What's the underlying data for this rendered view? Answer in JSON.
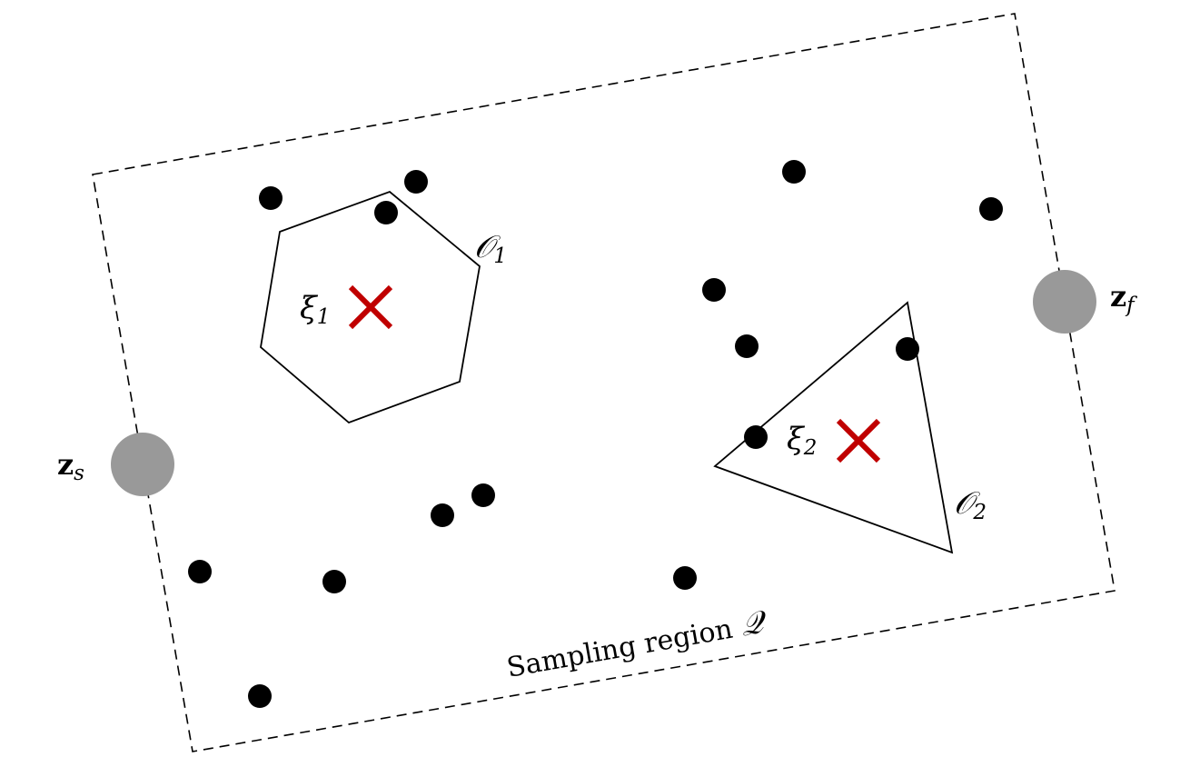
{
  "region": {
    "label": "Sampling region",
    "symbol": "𝒬"
  },
  "obstacles": [
    {
      "symbol": "𝒪",
      "index": "1",
      "center_symbol": "ξ",
      "center_index": "1"
    },
    {
      "symbol": "𝒪",
      "index": "2",
      "center_symbol": "ξ",
      "center_index": "2"
    }
  ],
  "start": {
    "symbol": "z",
    "sub": "s"
  },
  "goal": {
    "symbol": "z",
    "sub": "f"
  },
  "colors": {
    "endpoint": "#999999",
    "center_marker": "#c00000",
    "sample": "#000000"
  }
}
